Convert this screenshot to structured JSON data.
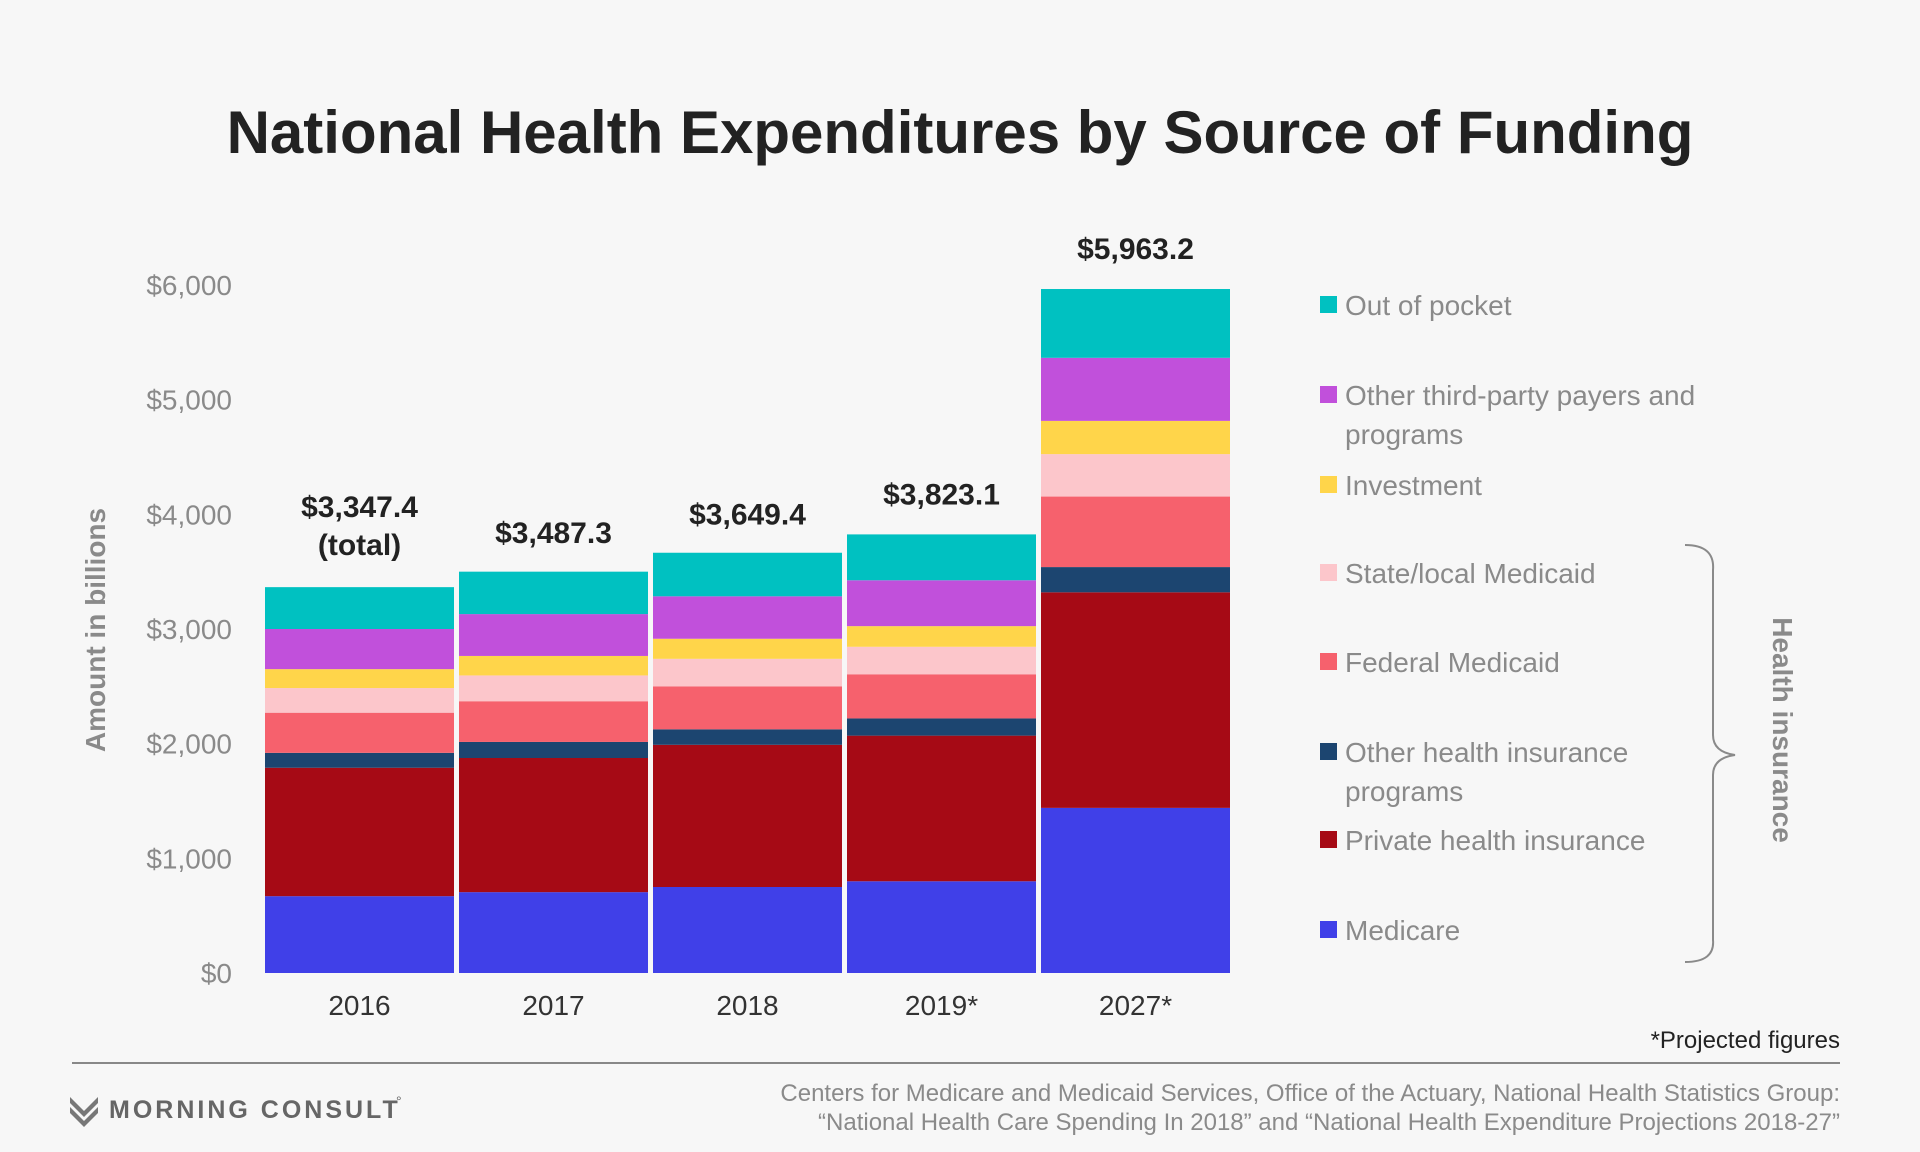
{
  "chart_data": {
    "type": "bar",
    "stacked": true,
    "title": "National Health Expenditures by Source of Funding",
    "ylabel": "Amount in billions",
    "ylim": [
      0,
      6000
    ],
    "yticks": [
      "$0",
      "$1,000",
      "$2,000",
      "$3,000",
      "$4,000",
      "$5,000",
      "$6,000"
    ],
    "ytick_values": [
      0,
      1000,
      2000,
      3000,
      4000,
      5000,
      6000
    ],
    "categories": [
      "2016",
      "2017",
      "2018",
      "2019*",
      "2027*"
    ],
    "totals": [
      3347.4,
      3487.3,
      3649.4,
      3823.1,
      5963.2
    ],
    "total_labels": [
      "$3,347.4",
      "$3,487.3",
      "$3,649.4",
      "$3,823.1",
      "$5,963.2"
    ],
    "first_total_suffix": "(total)",
    "series": [
      {
        "name": "Medicare",
        "color": "#4040e8",
        "values": [
          670,
          705,
          750,
          800,
          1440
        ]
      },
      {
        "name": "Private health insurance",
        "color": "#a60a15",
        "values": [
          1120,
          1170,
          1240,
          1270,
          1880
        ]
      },
      {
        "name": "Other health insurance programs",
        "color": "#1c4570",
        "values": [
          130,
          140,
          135,
          150,
          220
        ]
      },
      {
        "name": "Federal Medicaid",
        "color": "#f6616d",
        "values": [
          350,
          355,
          375,
          385,
          615
        ]
      },
      {
        "name": "State/local Medicaid",
        "color": "#fcc6cb",
        "values": [
          215,
          225,
          240,
          240,
          370
        ]
      },
      {
        "name": "Investment",
        "color": "#ffd54a",
        "values": [
          165,
          170,
          175,
          180,
          290
        ]
      },
      {
        "name": "Other third-party payers and programs",
        "color": "#c150db",
        "values": [
          350,
          365,
          370,
          400,
          550
        ]
      },
      {
        "name": "Out of pocket",
        "color": "#00c1c1",
        "values": [
          365,
          370,
          380,
          400,
          600
        ]
      }
    ],
    "legend": [
      {
        "lines": [
          "Out of pocket"
        ],
        "color": "#00c1c1"
      },
      {
        "lines": [
          "Other third-party payers and",
          "programs"
        ],
        "color": "#c150db"
      },
      {
        "lines": [
          "Investment"
        ],
        "color": "#ffd54a"
      },
      {
        "lines": [
          "State/local Medicaid"
        ],
        "color": "#fcc6cb"
      },
      {
        "lines": [
          "Federal Medicaid"
        ],
        "color": "#f6616d"
      },
      {
        "lines": [
          "Other health insurance",
          "programs"
        ],
        "color": "#1c4570"
      },
      {
        "lines": [
          "Private health insurance"
        ],
        "color": "#a60a15"
      },
      {
        "lines": [
          "Medicare"
        ],
        "color": "#4040e8"
      }
    ],
    "bracket_label": "Health insurance",
    "legend_placement": "right",
    "grid": false
  },
  "footnote": "*Projected figures",
  "source_lines": [
    "Centers for Medicare and Medicaid Services, Office of the Actuary, National Health Statistics Group:",
    "“National Health Care Spending In 2018” and “National Health Expenditure Projections 2018-27”"
  ],
  "brand": "MORNING CONSULT",
  "brand_mark": "°"
}
